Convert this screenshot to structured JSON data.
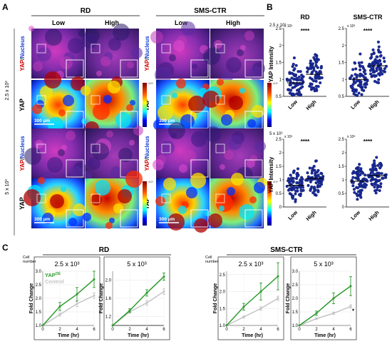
{
  "panel_labels": {
    "a": "A",
    "b": "B",
    "c": "C"
  },
  "panel_a": {
    "groups": [
      "RD",
      "SMS-CTR"
    ],
    "columns": [
      "Low",
      "High"
    ],
    "row_densities": [
      "2.5 x 10³",
      "5 x 10³"
    ],
    "stain_label_red": "YAP",
    "stain_label_sep": "/",
    "stain_label_blue": "Nucleus",
    "heat_label": "YAP",
    "scalebar": "300 µm",
    "colorbar_exp": "x10⁴"
  },
  "panel_b": {
    "groups": [
      "RD",
      "SMS-CTR"
    ],
    "ylabel": "YAP Intensity",
    "xcats": [
      "Low",
      "High"
    ],
    "scale_labels": [
      "2.5 x 10³",
      "5 x 10³"
    ],
    "multiplier": "x 10³",
    "significance": "****",
    "chart_data": [
      {
        "type": "scatter",
        "group": "RD",
        "density": "2.5 x 10³",
        "ylim": [
          0.5,
          2.5
        ],
        "yticks": [
          0.5,
          1,
          1.5,
          2,
          2.5
        ],
        "categories": [
          "Low",
          "High"
        ],
        "medians": [
          0.9,
          1.15
        ]
      },
      {
        "type": "scatter",
        "group": "SMS-CTR",
        "density": "2.5 x 10³",
        "ylim": [
          0.5,
          2.5
        ],
        "yticks": [
          0.5,
          1,
          1.5,
          2,
          2.5
        ],
        "categories": [
          "Low",
          "High"
        ],
        "medians": [
          1.0,
          1.4
        ]
      },
      {
        "type": "scatter",
        "group": "RD",
        "density": "5 x 10³",
        "ylim": [
          0,
          2.5
        ],
        "yticks": [
          0,
          0.5,
          1,
          1.5,
          2,
          2.5
        ],
        "categories": [
          "Low",
          "High"
        ],
        "medians": [
          0.8,
          1.05
        ]
      },
      {
        "type": "scatter",
        "group": "SMS-CTR",
        "density": "5 x 10³",
        "ylim": [
          0,
          2.5
        ],
        "yticks": [
          0,
          0.5,
          1,
          1.5,
          2,
          2.5
        ],
        "categories": [
          "Low",
          "High"
        ],
        "medians": [
          0.95,
          1.15
        ]
      }
    ]
  },
  "panel_c": {
    "groups": [
      "RD",
      "SMS-CTR"
    ],
    "cell_number": "Cell number",
    "ylabel": "Fold Change",
    "xlabel": "Time (hr)",
    "legend_oe": "YAP",
    "legend_oe_sup": "OE",
    "legend_ctrl": "Control",
    "sig_mark": "*",
    "colors": {
      "oe": "#2e9a2e",
      "ctrl": "#c4c4c4"
    },
    "chart_data": [
      {
        "type": "line",
        "title": "2.5 x 10³",
        "group": "RD",
        "x": [
          0,
          2,
          4,
          6
        ],
        "ylim": [
          1,
          3
        ],
        "yticks": [
          1.0,
          1.5,
          2.0,
          2.5,
          3.0
        ],
        "series": [
          {
            "name": "YAPᴼᴱ",
            "values": [
              1.0,
              1.7,
              2.15,
              2.7
            ],
            "err": [
              0,
              0.15,
              0.25,
              0.3
            ]
          },
          {
            "name": "Control",
            "values": [
              1.0,
              1.4,
              1.8,
              2.1
            ],
            "err": [
              0,
              0.05,
              0.1,
              0.1
            ]
          }
        ]
      },
      {
        "type": "line",
        "title": "5 x 10³",
        "group": "RD",
        "x": [
          0,
          2,
          4,
          6
        ],
        "ylim": [
          1,
          2.2
        ],
        "yticks": [
          1.2,
          1.6,
          2.0
        ],
        "series": [
          {
            "name": "YAPᴼᴱ",
            "values": [
              1.0,
              1.33,
              1.72,
              2.08
            ],
            "err": [
              0,
              0.04,
              0.07,
              0.08
            ]
          },
          {
            "name": "Control",
            "values": [
              1.0,
              1.3,
              1.5,
              1.75
            ],
            "err": [
              0,
              0.03,
              0.05,
              0.06
            ]
          }
        ]
      },
      {
        "type": "line",
        "title": "2.5 x 10³",
        "group": "SMS-CTR",
        "x": [
          0,
          2,
          4,
          6
        ],
        "ylim": [
          1,
          2.6
        ],
        "yticks": [
          1.0,
          1.5,
          2.0,
          2.5
        ],
        "series": [
          {
            "name": "YAPᴼᴱ",
            "values": [
              1.0,
              1.55,
              2.0,
              2.45
            ],
            "err": [
              0,
              0.1,
              0.25,
              0.4
            ]
          },
          {
            "name": "Control",
            "values": [
              1.0,
              1.25,
              1.5,
              1.8
            ],
            "err": [
              0,
              0.03,
              0.05,
              0.06
            ]
          }
        ]
      },
      {
        "type": "line",
        "title": "5 x 10³",
        "group": "SMS-CTR",
        "x": [
          0,
          2,
          4,
          6
        ],
        "ylim": [
          1,
          3
        ],
        "yticks": [
          1.0,
          1.5,
          2.0,
          2.5,
          3.0
        ],
        "series": [
          {
            "name": "YAPᴼᴱ",
            "values": [
              1.0,
              1.45,
              2.0,
              2.45
            ],
            "err": [
              0,
              0.08,
              0.2,
              0.35
            ]
          },
          {
            "name": "Control",
            "values": [
              1.0,
              1.25,
              1.45,
              1.7
            ],
            "err": [
              0,
              0.03,
              0.04,
              0.06
            ]
          }
        ]
      }
    ]
  }
}
